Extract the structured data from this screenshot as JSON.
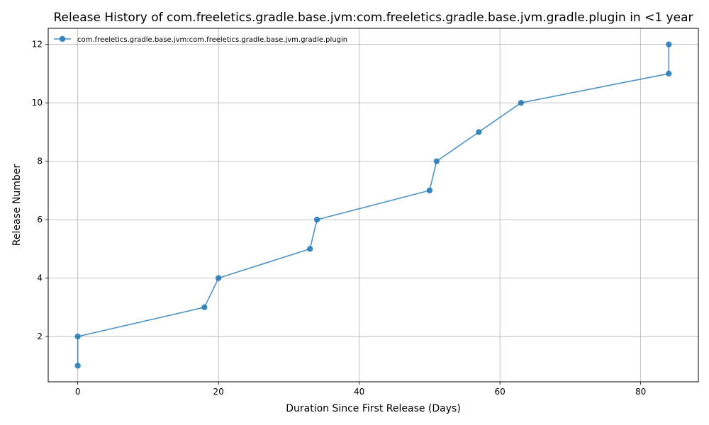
{
  "chart_data": {
    "type": "line",
    "title": "Release History of com.freeletics.gradle.base.jvm:com.freeletics.gradle.base.jvm.gradle.plugin in <1 year",
    "xlabel": "Duration Since First Release (Days)",
    "ylabel": "Release Number",
    "xlim": [
      -4.2,
      88.2
    ],
    "ylim": [
      0.45,
      12.55
    ],
    "xticks": [
      0,
      20,
      40,
      60,
      80
    ],
    "yticks": [
      2,
      4,
      6,
      8,
      10,
      12
    ],
    "grid": true,
    "legend_position": "top-left",
    "series": [
      {
        "name": "com.freeletics.gradle.base.jvm:com.freeletics.gradle.base.jvm.gradle.plugin",
        "color": "#1f77b4",
        "marker": "circle",
        "x": [
          0,
          0,
          18,
          20,
          33,
          34,
          50,
          51,
          57,
          63,
          84,
          84
        ],
        "y": [
          1,
          2,
          3,
          4,
          5,
          6,
          7,
          8,
          9,
          10,
          11,
          12
        ]
      }
    ]
  }
}
